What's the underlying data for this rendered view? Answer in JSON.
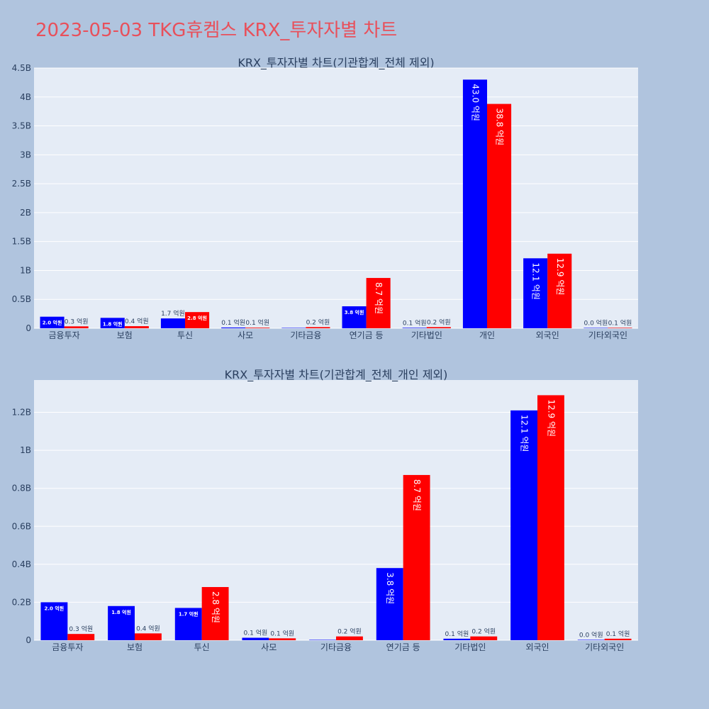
{
  "title": "2023-05-03 TKG휴켐스 KRX_투자자별 차트",
  "colors": {
    "buy": "#0000ff",
    "sell": "#ff0000",
    "plot_bg": "#e5ecf6",
    "page_bg": "#b0c4de",
    "title": "#e8505b"
  },
  "chart_data": [
    {
      "type": "bar",
      "title": "KRX_투자자별 차트(기관합계_전체 제외)",
      "categories": [
        "금융투자",
        "보험",
        "투신",
        "사모",
        "기타금융",
        "연기금 등",
        "기타법인",
        "개인",
        "외국인",
        "기타외국인"
      ],
      "series": [
        {
          "color": "#0000ff",
          "values": [
            0.2,
            0.18,
            0.17,
            0.013,
            0.002,
            0.38,
            0.008,
            4.3,
            1.21,
            0.002
          ],
          "labels": [
            "2.0 억원",
            "1.8 억원",
            "1.7 억원",
            "0.1 억원",
            "",
            "3.8 억원",
            "0.1 억원",
            "43.0 억원",
            "12.1 억원",
            "0.0 억원"
          ]
        },
        {
          "color": "#ff0000",
          "values": [
            0.033,
            0.036,
            0.28,
            0.01,
            0.02,
            0.87,
            0.02,
            3.88,
            1.29,
            0.008
          ],
          "labels": [
            "0.3 억원",
            "0.4 억원",
            "2.8 억원",
            "0.1 억원",
            "0.2 억원",
            "8.7 억원",
            "0.2 억원",
            "38.8 억원",
            "12.9 억원",
            "0.1 억원"
          ]
        }
      ],
      "y_ticks": [
        0,
        0.5,
        1,
        1.5,
        2,
        2.5,
        3,
        3.5,
        4,
        4.5
      ],
      "y_tick_labels": [
        "0",
        "0.5B",
        "1B",
        "1.5B",
        "2B",
        "2.5B",
        "3B",
        "3.5B",
        "4B",
        "4.5B"
      ],
      "ylim": [
        0,
        4.5
      ],
      "grid": true,
      "legend": "none"
    },
    {
      "type": "bar",
      "title": "KRX_투자자별 차트(기관합계_전체_개인 제외)",
      "categories": [
        "금융투자",
        "보험",
        "투신",
        "사모",
        "기타금융",
        "연기금 등",
        "기타법인",
        "외국인",
        "기타외국인"
      ],
      "series": [
        {
          "color": "#0000ff",
          "values": [
            0.2,
            0.18,
            0.17,
            0.013,
            0.002,
            0.38,
            0.008,
            1.21,
            0.002
          ],
          "labels": [
            "2.0 억원",
            "1.8 억원",
            "1.7 억원",
            "0.1 억원",
            "",
            "3.8 억원",
            "0.1 억원",
            "12.1 억원",
            "0.0 억원"
          ]
        },
        {
          "color": "#ff0000",
          "values": [
            0.033,
            0.036,
            0.28,
            0.01,
            0.02,
            0.87,
            0.02,
            1.29,
            0.008
          ],
          "labels": [
            "0.3 억원",
            "0.4 억원",
            "2.8 억원",
            "0.1 억원",
            "0.2 억원",
            "8.7 억원",
            "0.2 억원",
            "12.9 억원",
            "0.1 억원"
          ]
        }
      ],
      "y_ticks": [
        0,
        0.2,
        0.4,
        0.6,
        0.8,
        1.0,
        1.2
      ],
      "y_tick_labels": [
        "0",
        "0.2B",
        "0.4B",
        "0.6B",
        "0.8B",
        "1B",
        "1.2B"
      ],
      "ylim": [
        0,
        1.37
      ],
      "grid": true,
      "legend": "none"
    }
  ]
}
